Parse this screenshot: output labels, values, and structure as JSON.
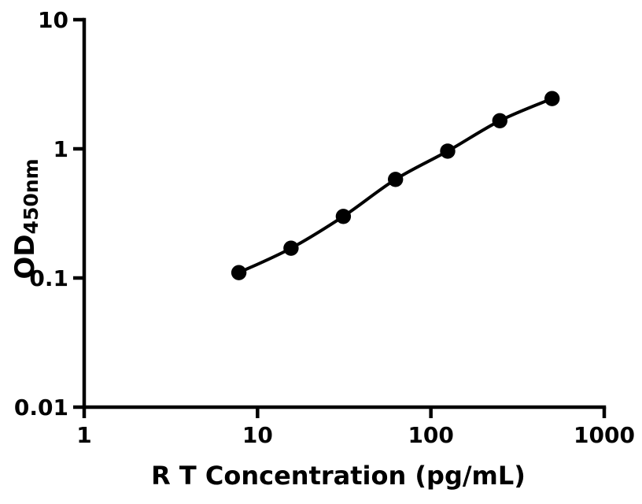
{
  "figure": {
    "background_color": "#ffffff",
    "foreground_color": "#000000"
  },
  "chart_data": {
    "type": "scatter",
    "title": "",
    "xlabel": "R T Concentration (pg/mL)",
    "ylabel": "OD",
    "ylabel_subscript": "450nm",
    "xscale": "log",
    "yscale": "log",
    "xlim": [
      1,
      1000
    ],
    "ylim": [
      0.01,
      10
    ],
    "grid": false,
    "legend": "none",
    "x": [
      7.8,
      15.6,
      31.25,
      62.5,
      125,
      250,
      500
    ],
    "y": [
      0.11,
      0.17,
      0.3,
      0.58,
      0.96,
      1.65,
      2.45
    ],
    "x_ticks": [
      {
        "value": 1,
        "label": "1"
      },
      {
        "value": 10,
        "label": "10"
      },
      {
        "value": 100,
        "label": "100"
      },
      {
        "value": 1000,
        "label": "1000"
      }
    ],
    "y_ticks": [
      {
        "value": 0.01,
        "label": "0.01"
      },
      {
        "value": 0.1,
        "label": "0.1"
      },
      {
        "value": 1,
        "label": "1"
      },
      {
        "value": 10,
        "label": "10"
      }
    ],
    "marker": {
      "shape": "circle",
      "color": "#000000",
      "radius": 9.7
    },
    "line": {
      "color": "#000000",
      "width": 4
    }
  }
}
